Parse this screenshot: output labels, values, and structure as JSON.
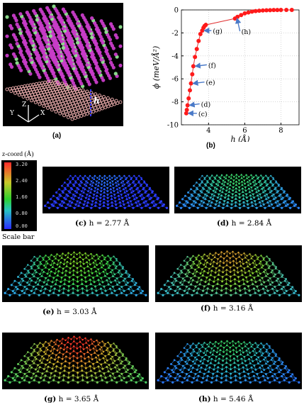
{
  "panels": {
    "a": {
      "caption": "(a)",
      "axes": {
        "z": "Z",
        "y": "Y",
        "x": "X",
        "h": "h"
      }
    },
    "b": {
      "caption": "(b)"
    }
  },
  "chart_data": {
    "type": "line",
    "xlabel": "h (Å)",
    "ylabel": "ϕ (meV/Å²)",
    "xlim": [
      2.5,
      9
    ],
    "ylim": [
      -10,
      0
    ],
    "xticks": [
      4,
      6,
      8
    ],
    "yticks": [
      0,
      -2,
      -4,
      -6,
      -8,
      -10
    ],
    "grid": true,
    "x": [
      2.77,
      2.8,
      2.84,
      2.9,
      2.97,
      3.03,
      3.1,
      3.16,
      3.25,
      3.35,
      3.45,
      3.55,
      3.65,
      3.72,
      3.78,
      3.85,
      5.46,
      5.6,
      5.8,
      6.0,
      6.2,
      6.4,
      6.6,
      6.8,
      7.0,
      7.2,
      7.4,
      7.6,
      7.8,
      8.0,
      8.3,
      8.6
    ],
    "y": [
      -9.0,
      -8.7,
      -8.3,
      -7.7,
      -7.0,
      -6.4,
      -5.6,
      -4.9,
      -4.1,
      -3.4,
      -2.7,
      -2.1,
      -1.8,
      -1.55,
      -1.4,
      -1.3,
      -0.75,
      -0.6,
      -0.45,
      -0.3,
      -0.22,
      -0.15,
      -0.1,
      -0.07,
      -0.05,
      -0.03,
      -0.02,
      -0.01,
      -0.01,
      0.0,
      0.0,
      0.0
    ],
    "annotations": [
      {
        "label": "(h)",
        "x": 5.46,
        "y": -0.75
      },
      {
        "label": "(g)",
        "x": 3.65,
        "y": -1.8
      },
      {
        "label": "(f)",
        "x": 3.16,
        "y": -4.9
      },
      {
        "label": "(e)",
        "x": 3.03,
        "y": -6.4
      },
      {
        "label": "(d)",
        "x": 2.84,
        "y": -8.3
      },
      {
        "label": "(c)",
        "x": 2.77,
        "y": -9.0
      }
    ]
  },
  "scale_bar": {
    "title": "z-coord (Å)",
    "label": "Scale bar",
    "ticks": [
      "3.20",
      "2.40",
      "1.60",
      "0.80",
      "0.00"
    ]
  },
  "snapshots": [
    {
      "id": "c",
      "caption_letter": "(c)",
      "caption_value": " h = 2.77 Å",
      "bump": 0.0,
      "colors": [
        "#2a3cff",
        "#2a3cff",
        "#2a6fff"
      ]
    },
    {
      "id": "d",
      "caption_letter": "(d)",
      "caption_value": " h = 2.84 Å",
      "bump": 0.15,
      "colors": [
        "#2a7cff",
        "#30c0a0",
        "#3ad46a"
      ]
    },
    {
      "id": "e",
      "caption_letter": "(e)",
      "caption_value": " h = 3.03 Å",
      "bump": 0.45,
      "colors": [
        "#2a9cff",
        "#3ad44a",
        "#7fd62a"
      ]
    },
    {
      "id": "f",
      "caption_letter": "(f)",
      "caption_value": " h = 3.16 Å",
      "bump": 0.55,
      "colors": [
        "#2ab0e0",
        "#7fcf30",
        "#d6a030"
      ]
    },
    {
      "id": "g",
      "caption_letter": "(g)",
      "caption_value": " h = 3.65 Å",
      "bump": 0.75,
      "colors": [
        "#3ad46a",
        "#c8b02a",
        "#ff3a2a"
      ]
    },
    {
      "id": "h",
      "caption_letter": "(h)",
      "caption_value": " h = 5.46 Å",
      "bump": 0.3,
      "colors": [
        "#2a6cff",
        "#2ab4c8",
        "#3ad46a"
      ]
    }
  ]
}
